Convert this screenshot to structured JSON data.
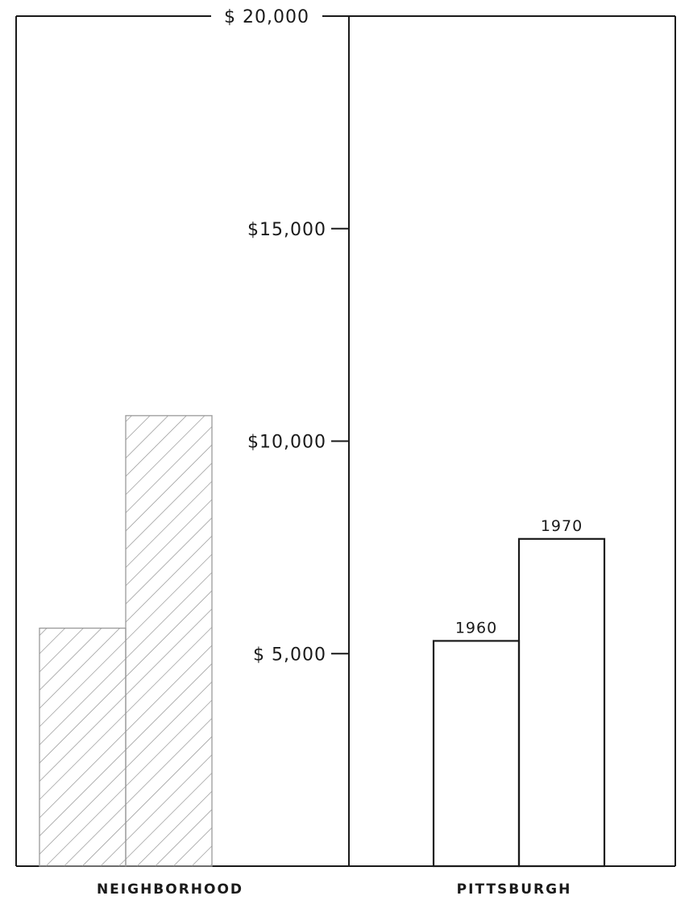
{
  "chart_data": {
    "type": "bar",
    "categories": [
      "NEIGHBORHOOD",
      "PITTSBURGH"
    ],
    "groups": [
      "1960",
      "1970"
    ],
    "series": [
      {
        "values": [
          5600,
          5300
        ],
        "style": "hatched-left,outlined-right"
      },
      {
        "values": [
          10600,
          7700
        ],
        "style": "hatched-left,outlined-right"
      }
    ],
    "bars": [
      {
        "category": "NEIGHBORHOOD",
        "year": "1960",
        "value": 5600,
        "fill": "hatched",
        "label": ""
      },
      {
        "category": "NEIGHBORHOOD",
        "year": "1970",
        "value": 10600,
        "fill": "hatched",
        "label": ""
      },
      {
        "category": "PITTSBURGH",
        "year": "1960",
        "value": 5300,
        "fill": "outline",
        "label": "1960"
      },
      {
        "category": "PITTSBURGH",
        "year": "1970",
        "value": 7700,
        "fill": "outline",
        "label": "1970"
      }
    ],
    "yticks": [
      {
        "value": 5000,
        "label": "$ 5,000"
      },
      {
        "value": 10000,
        "label": "$10,000"
      },
      {
        "value": 15000,
        "label": "$15,000"
      },
      {
        "value": 20000,
        "label": "$ 20,000"
      }
    ],
    "ylim": [
      0,
      20000
    ],
    "title": "",
    "xlabel": "",
    "ylabel": "",
    "grid": false,
    "colors": {
      "ink": "#1a1a1a",
      "hatch": "#8a8a8a",
      "background": "#ffffff"
    }
  }
}
